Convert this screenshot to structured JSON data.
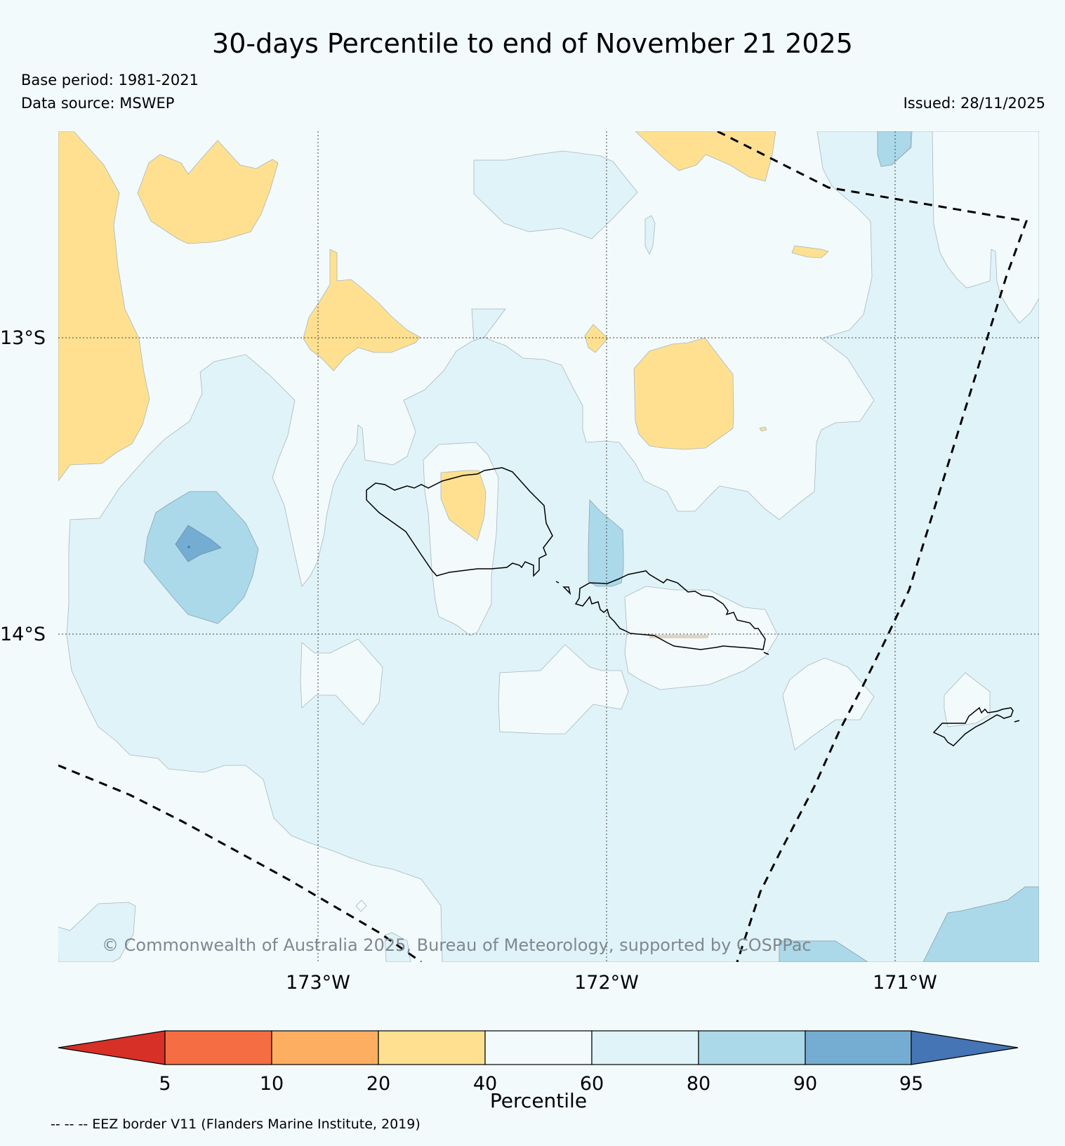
{
  "header": {
    "title": "30-days Percentile to end of November 21 2025",
    "base_period": "Base period: 1981-2021",
    "data_source": "Data source: MSWEP",
    "issued": "Issued: 28/11/2025"
  },
  "map": {
    "lat_labels": [
      "13°S",
      "14°S"
    ],
    "lon_labels": [
      "173°W",
      "172°W",
      "171°W"
    ],
    "copyright": "© Commonwealth of Australia 2025, Bureau of Meteorology, supported by COSPPac",
    "islands": [
      "Savai'i",
      "Upolu",
      "Tutuila"
    ]
  },
  "colorbar": {
    "label": "Percentile",
    "ticks": [
      "5",
      "10",
      "20",
      "40",
      "60",
      "80",
      "90",
      "95"
    ],
    "colors": {
      "below_5": "#d73027",
      "p5_10": "#f46d43",
      "p10_20": "#fdae61",
      "p20_40": "#fee090",
      "p40_60": "#f2fafc",
      "p60_80": "#e0f3f8",
      "p80_90": "#abd9e9",
      "p90_95": "#74add1",
      "above_95": "#4575b4"
    }
  },
  "footer": {
    "eez_note": "-- -- -- EEZ border V11 (Flanders Marine Institute, 2019)"
  }
}
